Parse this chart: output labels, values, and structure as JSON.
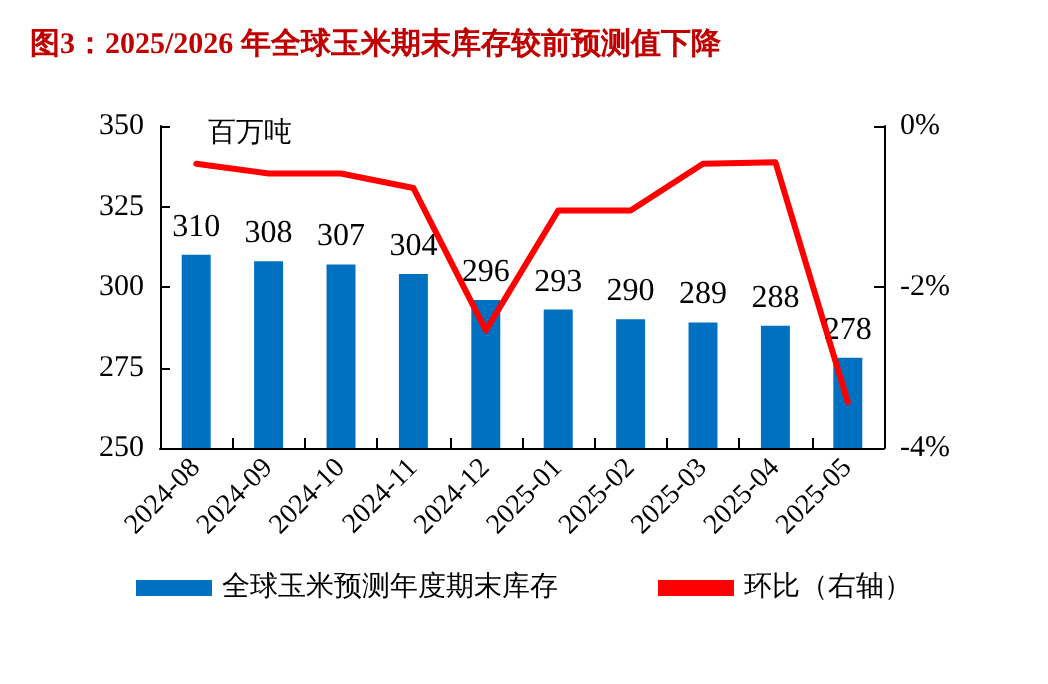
{
  "chart_data": {
    "type": "bar",
    "title": "图3：2025/2026 年全球玉米期末库存较前预测值下降",
    "ylabel": "百万吨",
    "categories": [
      "2024-08",
      "2024-09",
      "2024-10",
      "2024-11",
      "2024-12",
      "2025-01",
      "2025-02",
      "2025-03",
      "2025-04",
      "2025-05"
    ],
    "series": [
      {
        "name": "全球玉米预测年度期末库存",
        "color": "#0070c0",
        "values": [
          310,
          308,
          307,
          304,
          296,
          293,
          290,
          289,
          288,
          278
        ],
        "value_labels": [
          "310",
          "308",
          "307",
          "304",
          "296",
          "293",
          "290",
          "289",
          "288",
          "278"
        ]
      },
      {
        "name": "环比（右轴）",
        "type": "line",
        "axis": "y2",
        "color": "#ff0000",
        "values": [
          -0.47,
          -0.59,
          -0.59,
          -0.77,
          -2.54,
          -1.05,
          -1.05,
          -0.47,
          -0.45,
          -3.43
        ]
      }
    ],
    "ylim": [
      250,
      350
    ],
    "yticks": [
      250,
      275,
      300,
      325,
      350
    ],
    "y2lim": [
      -4,
      0
    ],
    "y2ticks": [
      {
        "value": -4,
        "label": "-4%"
      },
      {
        "value": -2,
        "label": "-2%"
      },
      {
        "value": 0,
        "label": "0%"
      }
    ],
    "legend": "bottom",
    "grid": false,
    "marker": "none",
    "line_style": "solid"
  }
}
